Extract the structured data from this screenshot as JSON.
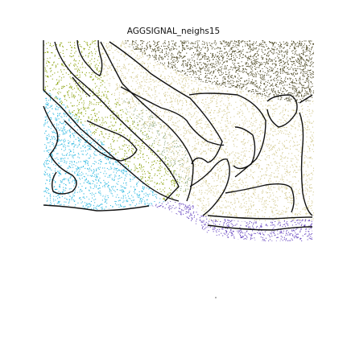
{
  "chart_data": {
    "type": "scatter",
    "title": "AGGSIGNAL_neighs15",
    "xlabel": "",
    "ylabel": "",
    "grid": false,
    "legend": "none",
    "series": [
      {
        "color": "#55512e"
      },
      {
        "color": "#d6cd96"
      },
      {
        "color": "#8ea512"
      },
      {
        "color": "#3bbde3"
      },
      {
        "color": "#93ad86"
      },
      {
        "color": "#6d4dc2"
      }
    ]
  }
}
